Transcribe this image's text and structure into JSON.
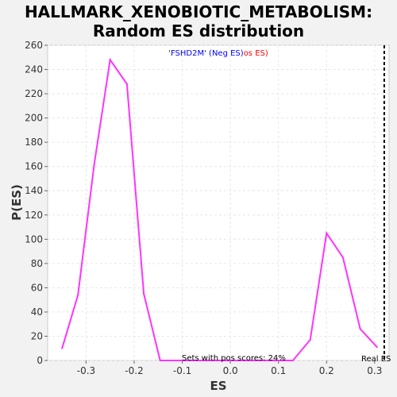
{
  "chart_data": {
    "type": "line",
    "title_line1": "HALLMARK_XENOBIOTIC_METABOLISM:",
    "title_line2": "Random ES distribution",
    "xlabel": "ES",
    "ylabel": "P(ES)",
    "xlim": [
      -0.38,
      0.33
    ],
    "ylim": [
      0,
      260
    ],
    "xticks": [
      -0.3,
      -0.2,
      -0.1,
      0.0,
      0.1,
      0.2,
      0.3
    ],
    "xtick_labels": [
      "-0.3",
      "-0.2",
      "-0.1",
      "0.0",
      "0.1",
      "0.2",
      "0.3"
    ],
    "yticks": [
      0,
      20,
      40,
      60,
      80,
      100,
      120,
      140,
      160,
      180,
      200,
      220,
      240,
      260
    ],
    "ytick_labels": [
      "0",
      "20",
      "40",
      "60",
      "80",
      "100",
      "120",
      "140",
      "160",
      "180",
      "200",
      "220",
      "240",
      "260"
    ],
    "grid": true,
    "series": [
      {
        "color": "#ff33ff",
        "x": [
          -0.35,
          -0.317,
          -0.283,
          -0.25,
          -0.215,
          -0.18,
          -0.146,
          -0.112,
          -0.078,
          -0.044,
          -0.01,
          0.024,
          0.058,
          0.092,
          0.13,
          0.166,
          0.2,
          0.234,
          0.27,
          0.305
        ],
        "y": [
          10,
          54,
          162,
          248,
          228,
          55,
          0,
          0,
          0,
          0,
          0,
          0,
          0,
          0,
          0,
          17,
          105,
          85,
          26,
          11
        ]
      }
    ],
    "legend_gene": "'FSHD2M'",
    "legend_neg": " (Neg ES)",
    "legend_pos": "os ES)",
    "legend_neg_color": "#0000ff",
    "legend_pos_color": "#ff0000",
    "real_es_value": 0.32,
    "real_es_label": "Real ES",
    "pos_scores_text": "Sets with pos scores: 24%"
  }
}
